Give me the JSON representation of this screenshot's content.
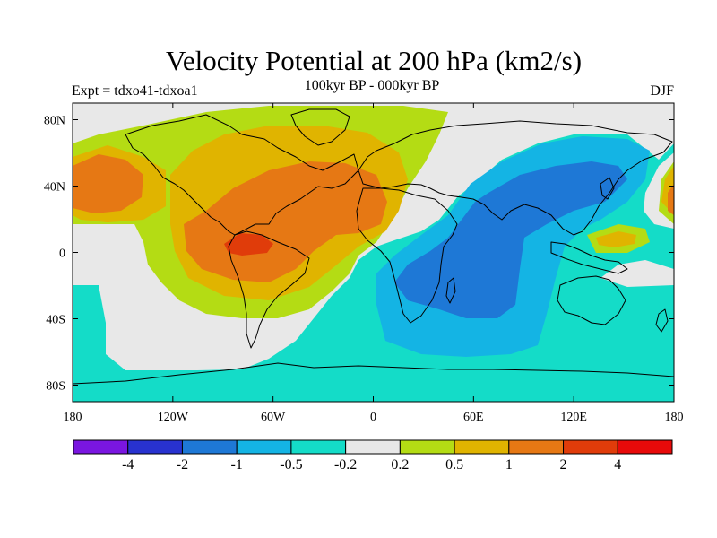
{
  "header": {
    "title": "Velocity Potential at 200 hPa (km2/s)",
    "subtitle": "100kyr BP - 000kyr BP",
    "left_label": "Expt = tdxo41-tdxoa1",
    "right_label": "DJF"
  },
  "axes": {
    "lat_ticks": [
      {
        "value": 80,
        "label": "80N"
      },
      {
        "value": 40,
        "label": "40N"
      },
      {
        "value": 0,
        "label": "0"
      },
      {
        "value": -40,
        "label": "40S"
      },
      {
        "value": -80,
        "label": "80S"
      }
    ],
    "lon_ticks": [
      {
        "value": -180,
        "label": "180"
      },
      {
        "value": -120,
        "label": "120W"
      },
      {
        "value": -60,
        "label": "60W"
      },
      {
        "value": 0,
        "label": "0"
      },
      {
        "value": 60,
        "label": "60E"
      },
      {
        "value": 120,
        "label": "120E"
      },
      {
        "value": 180,
        "label": "180"
      }
    ],
    "lon_range": [
      -180,
      180
    ],
    "lat_range": [
      -90,
      90
    ]
  },
  "colorbar": {
    "colors": [
      "#7a16e0",
      "#2832cf",
      "#1e78d6",
      "#14b4e4",
      "#14dcc8",
      "#e8e8e8",
      "#b4dc14",
      "#e0b400",
      "#e67814",
      "#e03c0a",
      "#e80a0a"
    ],
    "labels": [
      "-4",
      "-2",
      "-1",
      "-0.5",
      "-0.2",
      "0.2",
      "0.5",
      "1",
      "2",
      "4"
    ]
  },
  "map_colors": {
    "ocean_background": "#14dcc8",
    "neutral": "#e8e8e8",
    "weak_positive": "#b4dc14",
    "positive": "#e0b400",
    "strong_positive": "#e67814",
    "max_positive": "#e03c0a",
    "weak_negative": "#14b4e4",
    "negative": "#1e78d6",
    "coastline": "#000000"
  }
}
